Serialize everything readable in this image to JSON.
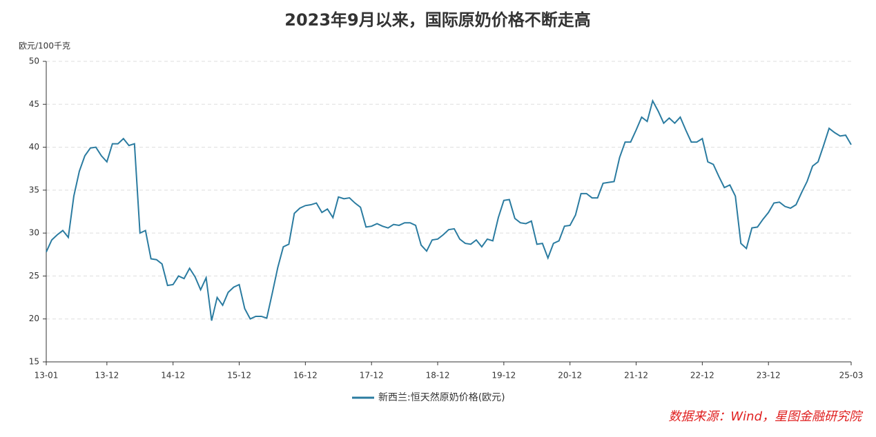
{
  "chart_data": {
    "type": "line",
    "title": "2023年9月以来，国际原奶价格不断走高",
    "y_axis_label": "欧元/100千克",
    "source": "数据来源：Wind，星图金融研究院",
    "categories": [
      "13-01",
      null,
      null,
      null,
      null,
      null,
      null,
      null,
      null,
      null,
      null,
      "13-12",
      null,
      null,
      null,
      null,
      null,
      null,
      null,
      null,
      null,
      null,
      null,
      "14-12",
      null,
      null,
      null,
      null,
      null,
      null,
      null,
      null,
      null,
      null,
      null,
      "15-12",
      null,
      null,
      null,
      null,
      null,
      null,
      null,
      null,
      null,
      null,
      null,
      "16-12",
      null,
      null,
      null,
      null,
      null,
      null,
      null,
      null,
      null,
      null,
      null,
      "17-12",
      null,
      null,
      null,
      null,
      null,
      null,
      null,
      null,
      null,
      null,
      null,
      "18-12",
      null,
      null,
      null,
      null,
      null,
      null,
      null,
      null,
      null,
      null,
      null,
      "19-12",
      null,
      null,
      null,
      null,
      null,
      null,
      null,
      null,
      null,
      null,
      null,
      "20-12",
      null,
      null,
      null,
      null,
      null,
      null,
      null,
      null,
      null,
      null,
      null,
      "21-12",
      null,
      null,
      null,
      null,
      null,
      null,
      null,
      null,
      null,
      null,
      null,
      "22-12",
      null,
      null,
      null,
      null,
      null,
      null,
      null,
      null,
      null,
      null,
      null,
      "23-12",
      null,
      null,
      null,
      null,
      null,
      null,
      null,
      null,
      null,
      null,
      null,
      null,
      null,
      null,
      "25-03"
    ],
    "series": [
      {
        "name": "新西兰:恒天然原奶价格(欧元)",
        "color": "#2a7ba0",
        "values": [
          27.8,
          29.2,
          29.8,
          30.3,
          29.5,
          34.3,
          37.2,
          39,
          39.9,
          40,
          39,
          38.3,
          40.4,
          40.4,
          41,
          40.2,
          40.4,
          30,
          30.3,
          27,
          26.9,
          26.4,
          23.9,
          24,
          25,
          24.7,
          25.9,
          24.9,
          23.4,
          24.8,
          19.8,
          22.5,
          21.6,
          23.1,
          23.7,
          24,
          21.2,
          20,
          20.3,
          20.3,
          20.1,
          23,
          26,
          28.4,
          28.7,
          32.3,
          32.9,
          33.2,
          33.3,
          33.5,
          32.4,
          32.8,
          31.8,
          34.2,
          34,
          34.1,
          33.5,
          33,
          30.7,
          30.8,
          31.1,
          30.8,
          30.6,
          31,
          30.9,
          31.2,
          31.2,
          30.9,
          28.6,
          27.9,
          29.2,
          29.3,
          29.8,
          30.4,
          30.5,
          29.3,
          28.8,
          28.7,
          29.2,
          28.4,
          29.3,
          29.1,
          31.8,
          33.8,
          33.9,
          31.7,
          31.2,
          31.1,
          31.4,
          28.7,
          28.8,
          27.1,
          28.8,
          29.1,
          30.8,
          30.9,
          32.1,
          34.6,
          34.6,
          34.1,
          34.1,
          35.8,
          35.9,
          36,
          38.8,
          40.6,
          40.6,
          42,
          43.5,
          43,
          45.4,
          44.2,
          42.8,
          43.4,
          42.8,
          43.5,
          42,
          40.6,
          40.6,
          41,
          38.3,
          38,
          36.6,
          35.3,
          35.6,
          34.3,
          28.8,
          28.2,
          30.6,
          30.7,
          31.6,
          32.4,
          33.5,
          33.6,
          33.1,
          32.9,
          33.3,
          34.7,
          36,
          37.8,
          38.3,
          40.2,
          42.2,
          41.7,
          41.3,
          41.4,
          40.3
        ]
      }
    ],
    "ylim": [
      15,
      50
    ],
    "yticks": [
      15,
      20,
      25,
      30,
      35,
      40,
      45,
      50
    ],
    "grid": true
  }
}
